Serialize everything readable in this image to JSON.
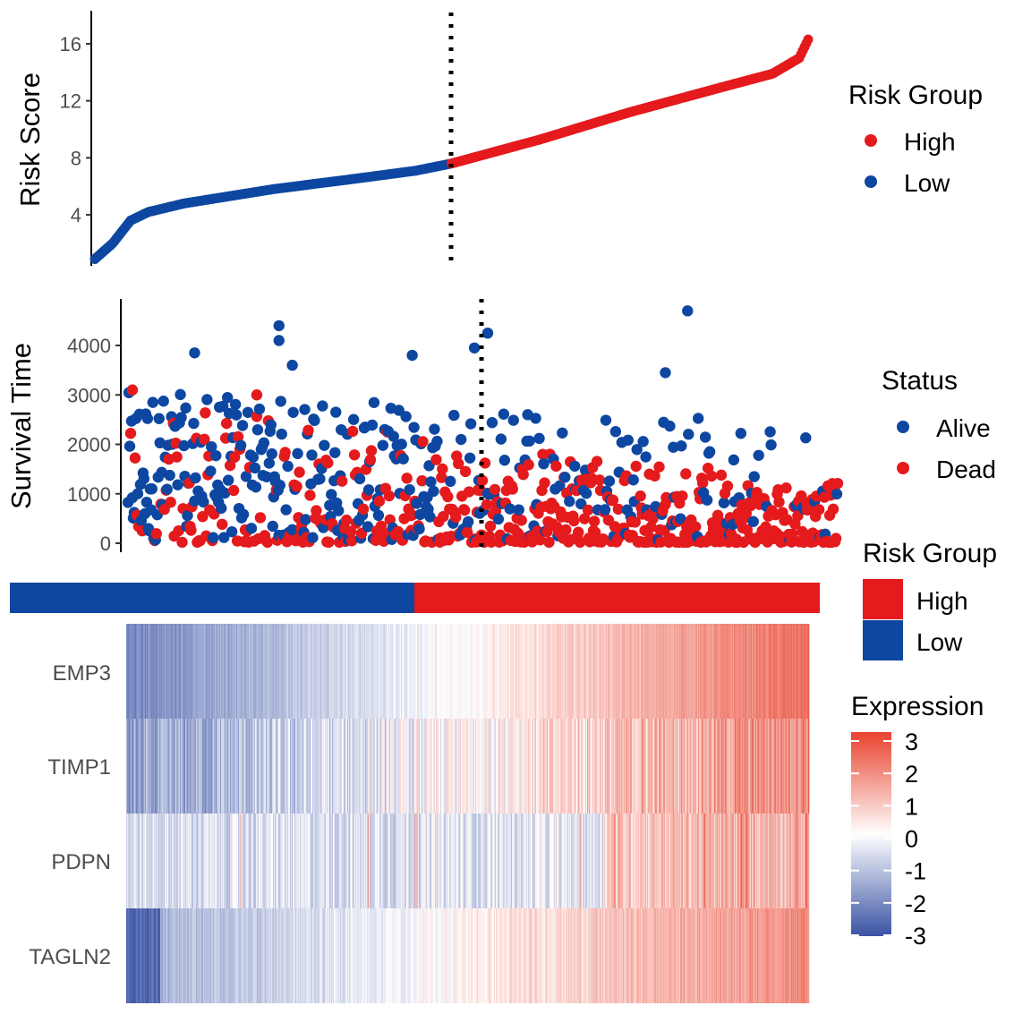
{
  "colors": {
    "high": "#e41a1c",
    "low": "#0d47a1",
    "dead": "#e41a1c",
    "alive": "#0d47a1",
    "heat_low": "#3a53a4",
    "heat_mid": "#ffffff",
    "heat_high": "#e8432e",
    "cutoff_line": "#000000"
  },
  "chart_data": [
    {
      "type": "scatter",
      "ylabel": "Risk Score",
      "xlabel": "",
      "yticks": [
        4,
        8,
        12,
        16
      ],
      "ylim": [
        0.3,
        17
      ],
      "n_samples": 800,
      "cutoff_index": 400,
      "cutoff_score": 7.6,
      "risk_score_profile": [
        {
          "rank": 0,
          "score": 0.9
        },
        {
          "rank": 20,
          "score": 2.0
        },
        {
          "rank": 40,
          "score": 3.6
        },
        {
          "rank": 60,
          "score": 4.2
        },
        {
          "rank": 100,
          "score": 4.8
        },
        {
          "rank": 200,
          "score": 5.8
        },
        {
          "rank": 300,
          "score": 6.6
        },
        {
          "rank": 360,
          "score": 7.1
        },
        {
          "rank": 400,
          "score": 7.6
        },
        {
          "rank": 500,
          "score": 9.3
        },
        {
          "rank": 600,
          "score": 11.2
        },
        {
          "rank": 700,
          "score": 12.9
        },
        {
          "rank": 760,
          "score": 13.9
        },
        {
          "rank": 790,
          "score": 15.0
        },
        {
          "rank": 800,
          "score": 16.3
        }
      ],
      "legend": {
        "title": "Risk Group",
        "position": "right",
        "items": [
          {
            "label": "High",
            "color_key": "high"
          },
          {
            "label": "Low",
            "color_key": "low"
          }
        ]
      }
    },
    {
      "type": "scatter",
      "ylabel": "Survival Time",
      "xlabel": "",
      "yticks": [
        0,
        1000,
        2000,
        3000,
        4000
      ],
      "ylim": [
        -200,
        4900
      ],
      "n_samples": 800,
      "cutoff_index": 400,
      "highlighted_points": [
        {
          "rank": 170,
          "time": 4400,
          "status": "Alive"
        },
        {
          "rank": 170,
          "time": 4100,
          "status": "Alive"
        },
        {
          "rank": 185,
          "time": 3600,
          "status": "Alive"
        },
        {
          "rank": 75,
          "time": 3850,
          "status": "Alive"
        },
        {
          "rank": 320,
          "time": 3800,
          "status": "Alive"
        },
        {
          "rank": 390,
          "time": 3950,
          "status": "Alive"
        },
        {
          "rank": 405,
          "time": 4250,
          "status": "Alive"
        },
        {
          "rank": 630,
          "time": 4700,
          "status": "Alive"
        },
        {
          "rank": 605,
          "time": 3450,
          "status": "Alive"
        },
        {
          "rank": 5,
          "time": 3100,
          "status": "Dead"
        },
        {
          "rank": 145,
          "time": 3000,
          "status": "Dead"
        }
      ],
      "legend": {
        "title": "Status",
        "position": "right",
        "items": [
          {
            "label": "Alive",
            "color_key": "alive"
          },
          {
            "label": "Dead",
            "color_key": "dead"
          }
        ]
      }
    },
    {
      "type": "heatmap",
      "genes": [
        "EMP3",
        "TIMP1",
        "PDPN",
        "TAGLN2"
      ],
      "n_samples": 800,
      "cutoff_index": 400,
      "annotation_bar": {
        "title": "Risk Group",
        "items": [
          {
            "label": "High",
            "color_key": "high"
          },
          {
            "label": "Low",
            "color_key": "low"
          }
        ]
      },
      "color_scale": {
        "title": "Expression",
        "ticks": [
          3,
          2,
          1,
          0,
          -1,
          -2,
          -3
        ],
        "range": [
          -3,
          3
        ]
      }
    }
  ]
}
